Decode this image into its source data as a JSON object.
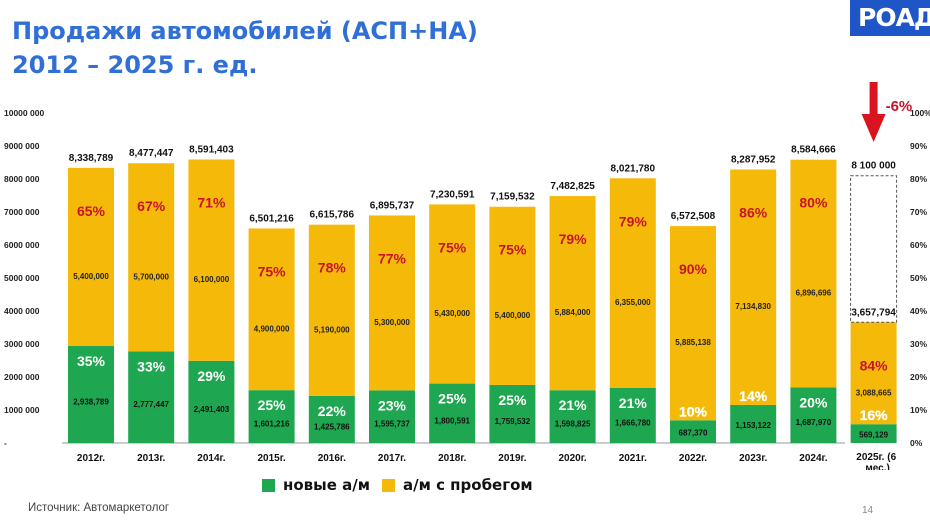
{
  "slide": {
    "title_line1": "Продажи автомобилей (АСП+НА)",
    "title_line2": "2012 – 2025 г. ед.",
    "logo": "РОАД",
    "source": "Источник: Автомаркетолог",
    "page_number": "14"
  },
  "chart_data": {
    "type": "bar",
    "stacked": true,
    "categories": [
      "2012г.",
      "2013г.",
      "2014г.",
      "2015г.",
      "2016г.",
      "2017г.",
      "2018г.",
      "2019г.",
      "2020г.",
      "2021г.",
      "2022г.",
      "2023г.",
      "2024г.",
      "2025г. (6 мес.)"
    ],
    "series": [
      {
        "name": "новые а/м",
        "color": "#1ea750",
        "values": [
          2938789,
          2777447,
          2491403,
          1601216,
          1425786,
          1595737,
          1800591,
          1759532,
          1598825,
          1666780,
          687370,
          1153122,
          1687970,
          569129
        ],
        "value_labels": [
          "2,938,789",
          "2,777,447",
          "2,491,403",
          "1,601,216",
          "1,425,786",
          "1,595,737",
          "1,800,591",
          "1,759,532",
          "1,598,825",
          "1,666,780",
          "687,370",
          "1,153,122",
          "1,687,970",
          "569,129"
        ],
        "percent_labels": [
          "35%",
          "33%",
          "29%",
          "25%",
          "22%",
          "23%",
          "25%",
          "25%",
          "21%",
          "21%",
          "10%",
          "14%",
          "20%",
          "16%"
        ]
      },
      {
        "name": "а/м с пробегом",
        "color": "#f5b90a",
        "values": [
          5400000,
          5700000,
          6100000,
          4900000,
          5190000,
          5300000,
          5430000,
          5400000,
          5884000,
          6355000,
          5885138,
          7134830,
          6896696,
          3088665
        ],
        "value_labels": [
          "5,400,000",
          "5,700,000",
          "6,100,000",
          "4,900,000",
          "5,190,000",
          "5,300,000",
          "5,430,000",
          "5,400,000",
          "5,884,000",
          "6,355,000",
          "5,885,138",
          "7,134,830",
          "6,896,696",
          "3,088,665"
        ],
        "percent_labels": [
          "65%",
          "67%",
          "71%",
          "75%",
          "78%",
          "77%",
          "75%",
          "75%",
          "79%",
          "79%",
          "90%",
          "86%",
          "80%",
          "84%"
        ]
      }
    ],
    "totals": [
      8338789,
      8477447,
      8591403,
      6501216,
      6615786,
      6895737,
      7230591,
      7159532,
      7482825,
      8021780,
      6572508,
      8287952,
      8584666,
      3657794
    ],
    "total_labels": [
      "8,338,789",
      "8,477,447",
      "8,591,403",
      "6,501,216",
      "6,615,786",
      "6,895,737",
      "7,230,591",
      "7,159,532",
      "7,482,825",
      "8,021,780",
      "6,572,508",
      "8,287,952",
      "8,584,666",
      "3,657,794"
    ],
    "forecast": {
      "value": 8100000,
      "label": "8 100 000",
      "change_label": "-6%"
    },
    "ylim": [
      0,
      10000000
    ],
    "y_ticks": [
      0,
      1000000,
      2000000,
      3000000,
      4000000,
      5000000,
      6000000,
      7000000,
      8000000,
      9000000,
      10000000
    ],
    "y_tick_labels": [
      "-",
      "1000 000",
      "2000 000",
      "3000 000",
      "4000 000",
      "5000 000",
      "6000 000",
      "7000 000",
      "8000 000",
      "9000 000",
      "10000 000"
    ],
    "y2_tick_labels": [
      "0%",
      "10%",
      "20%",
      "30%",
      "40%",
      "50%",
      "60%",
      "70%",
      "80%",
      "90%",
      "100%"
    ],
    "grid": false,
    "legend_position": "bottom"
  }
}
